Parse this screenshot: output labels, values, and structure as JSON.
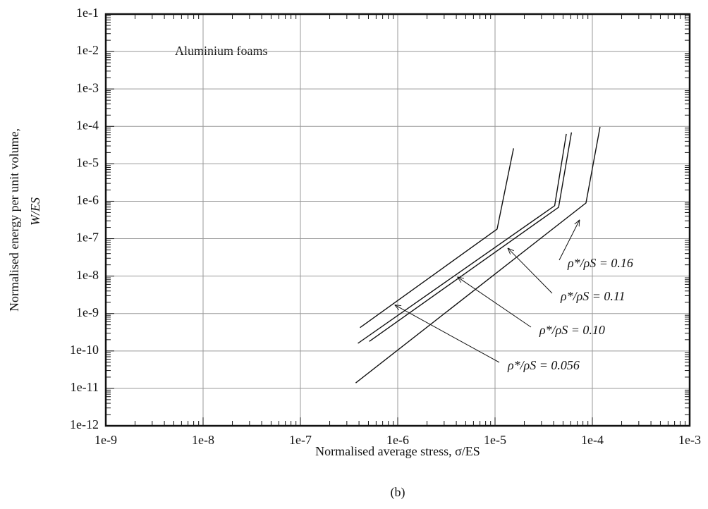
{
  "chart_data": {
    "type": "line",
    "log_x": true,
    "log_y": true,
    "grid": true,
    "x_label": "Normalised average stress, σ/ES",
    "y_label": "Normalised energy per unit volume,",
    "y_label_unit": "W/ES",
    "note": "Aluminium foams",
    "caption": "(b)",
    "xlim": [
      1e-09,
      0.001
    ],
    "xticks": [
      1e-09,
      1e-08,
      1e-07,
      {
        "value": 1e-06,
        "label": "1e-6"
      },
      {
        "value": 1e-05,
        "label": "1e-5"
      },
      {
        "value": 0.0001,
        "label": "1e-4"
      },
      {
        "value": 0.001,
        "label": "1e-3"
      }
    ],
    "ylim": [
      1e-12,
      0.1
    ],
    "yticks": [
      1e-12,
      1e-11,
      1e-10,
      1e-09,
      1e-08,
      1e-07,
      {
        "value": 1e-06,
        "label": "1e-6"
      },
      {
        "value": 1e-05,
        "label": "1e-5"
      },
      {
        "value": 0.0001,
        "label": "1e-4"
      },
      {
        "value": 0.001,
        "label": "1e-3"
      },
      {
        "value": 0.01,
        "label": "1e-2"
      },
      {
        "value": 0.1,
        "label": "1e-1"
      }
    ],
    "series": [
      {
        "name": "ρ*/ρS = 0.056",
        "color": "#111111",
        "x": [
          4.1e-07,
          1.05e-05,
          1.55e-05
        ],
        "values": [
          4.2e-10,
          1.8e-07,
          2.6e-05
        ],
        "annotation_x": 9.3e-07,
        "annotation_y": 1.7e-09
      },
      {
        "name": "ρ*/ρS = 0.10",
        "color": "#111111",
        "x": [
          3.9e-07,
          4.1e-05,
          5.4e-05
        ],
        "values": [
          1.6e-10,
          7.6e-07,
          6.3e-05
        ],
        "annotation_x": 4.1e-06,
        "annotation_y": 9.5e-09
      },
      {
        "name": "ρ*/ρS = 0.11",
        "color": "#111111",
        "x": [
          5.1e-07,
          4.5e-05,
          6.1e-05
        ],
        "values": [
          1.8e-10,
          6.9e-07,
          6.9e-05
        ],
        "annotation_x": 1.35e-05,
        "annotation_y": 5.6e-08
      },
      {
        "name": "ρ*/ρS = 0.16",
        "color": "#111111",
        "x": [
          3.7e-07,
          8.6e-05,
          0.00012
        ],
        "values": [
          1.4e-11,
          9e-07,
          9.7e-05
        ],
        "annotation_x": 7.4e-05,
        "annotation_y": 3.2e-07
      }
    ]
  }
}
